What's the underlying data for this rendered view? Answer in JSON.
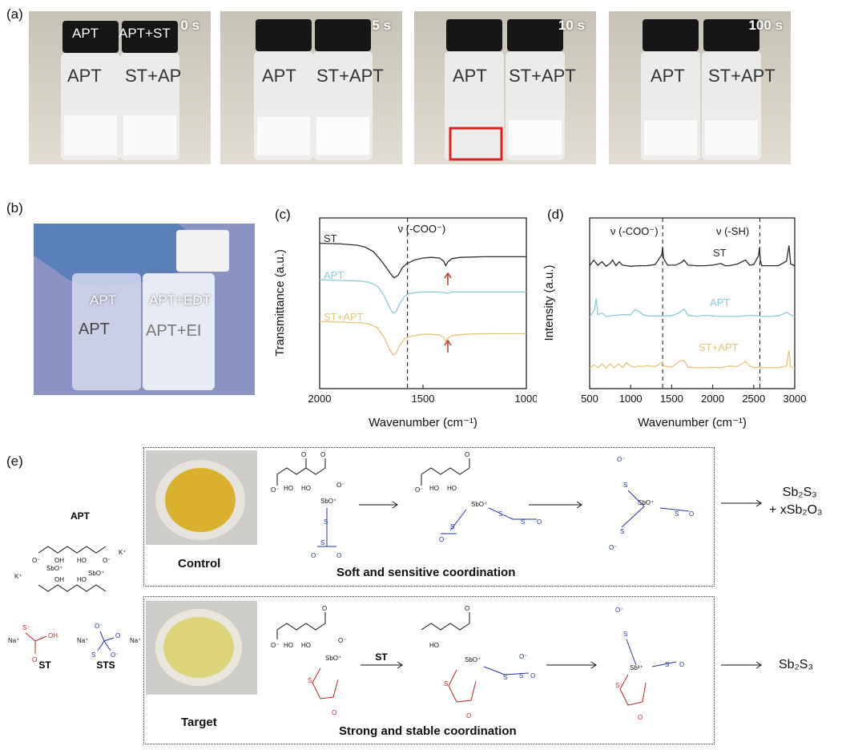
{
  "panels": {
    "a": "(a)",
    "b": "(b)",
    "c": "(c)",
    "d": "(d)",
    "e": "(e)"
  },
  "photos_a": [
    {
      "time": "0 s",
      "left_label": "APT",
      "right_label": "APT+ST"
    },
    {
      "time": "5 s"
    },
    {
      "time": "10 s"
    },
    {
      "time": "100 s"
    }
  ],
  "photo_b": {
    "left_label": "APT",
    "right_label": "APT+EDT"
  },
  "colors": {
    "ST": "#2b2b2b",
    "APT": "#8ec9d8",
    "ST+APT": "#e4c57a",
    "blue": "#2233aa",
    "red": "#cc2222",
    "arrow": "#c0392b"
  },
  "chart_data": [
    {
      "type": "line",
      "xlabel": "Wavenumber (cm⁻¹)",
      "ylabel": "Transmittance (a.u.)",
      "xlim": [
        2000,
        1000
      ],
      "x_ticks": [
        "2000",
        "1500",
        "1000"
      ],
      "annotation": "ν (-COO⁻)",
      "dashed_line_x": 1575,
      "series": [
        {
          "name": "ST",
          "x": [
            2000,
            1900,
            1820,
            1780,
            1740,
            1700,
            1660,
            1640,
            1620,
            1600,
            1580,
            1560,
            1540,
            1500,
            1460,
            1420,
            1400,
            1390,
            1380,
            1360,
            1320,
            1200,
            1100,
            1000
          ],
          "values": [
            0.98,
            0.97,
            0.95,
            0.92,
            0.85,
            0.7,
            0.52,
            0.44,
            0.48,
            0.6,
            0.66,
            0.69,
            0.72,
            0.75,
            0.76,
            0.75,
            0.7,
            0.63,
            0.69,
            0.74,
            0.76,
            0.77,
            0.77,
            0.77
          ]
        },
        {
          "name": "APT",
          "x": [
            2000,
            1900,
            1800,
            1760,
            1720,
            1690,
            1660,
            1645,
            1630,
            1610,
            1590,
            1570,
            1540,
            1500,
            1420,
            1380,
            1360,
            1300,
            1200,
            1100,
            1000
          ],
          "values": [
            0.96,
            0.95,
            0.94,
            0.92,
            0.86,
            0.72,
            0.52,
            0.44,
            0.47,
            0.6,
            0.7,
            0.74,
            0.76,
            0.77,
            0.77,
            0.75,
            0.77,
            0.77,
            0.77,
            0.77,
            0.77
          ]
        },
        {
          "name": "ST+APT",
          "x": [
            2000,
            1900,
            1800,
            1760,
            1720,
            1690,
            1660,
            1645,
            1630,
            1610,
            1590,
            1570,
            1540,
            1500,
            1460,
            1420,
            1400,
            1390,
            1380,
            1360,
            1300,
            1200,
            1100,
            1000
          ],
          "values": [
            0.96,
            0.95,
            0.94,
            0.92,
            0.86,
            0.72,
            0.52,
            0.44,
            0.47,
            0.6,
            0.69,
            0.72,
            0.74,
            0.76,
            0.76,
            0.75,
            0.71,
            0.65,
            0.7,
            0.74,
            0.76,
            0.77,
            0.77,
            0.77
          ]
        }
      ]
    },
    {
      "type": "line",
      "xlabel": "Wavenumber (cm⁻¹)",
      "ylabel": "Intensity (a.u.)",
      "xlim": [
        500,
        3000
      ],
      "x_ticks": [
        "500",
        "1000",
        "1500",
        "2000",
        "2500",
        "3000"
      ],
      "annotations": [
        "ν (-COO⁻)",
        "ν (-SH)"
      ],
      "dashed_lines_x": [
        1390,
        2575
      ],
      "series": [
        {
          "name": "ST",
          "x": [
            500,
            550,
            600,
            650,
            700,
            750,
            780,
            820,
            860,
            900,
            950,
            1000,
            1100,
            1200,
            1300,
            1380,
            1390,
            1400,
            1450,
            1550,
            1620,
            1650,
            1700,
            1800,
            1900,
            2000,
            2100,
            2150,
            2200,
            2300,
            2400,
            2450,
            2500,
            2560,
            2570,
            2580,
            2600,
            2700,
            2800,
            2900,
            2930,
            2950,
            3000
          ],
          "values": [
            0.2,
            1.2,
            0.3,
            0.9,
            0.1,
            0.6,
            1.2,
            0.2,
            0.9,
            0.3,
            0.2,
            0.1,
            0.2,
            0.2,
            0.4,
            2.2,
            3.5,
            1.5,
            0.3,
            0.3,
            0.8,
            1.2,
            0.3,
            0.2,
            0.2,
            0.3,
            0.6,
            0.2,
            0.2,
            0.5,
            1.2,
            0.3,
            0.4,
            2.0,
            3.4,
            1.2,
            0.2,
            0.2,
            0.2,
            1.0,
            3.8,
            0.5,
            0.2
          ]
        },
        {
          "name": "APT",
          "x": [
            500,
            560,
            580,
            600,
            650,
            700,
            800,
            900,
            1000,
            1050,
            1100,
            1150,
            1200,
            1300,
            1400,
            1500,
            1600,
            1650,
            1700,
            1800,
            1900,
            2000,
            2100,
            2200,
            2300,
            2400,
            2500,
            2600,
            2700,
            2800,
            2900,
            2950,
            3000
          ],
          "values": [
            0.2,
            1.5,
            3.5,
            0.6,
            0.9,
            0.3,
            0.5,
            0.6,
            0.6,
            1.5,
            1.2,
            0.6,
            0.4,
            0.4,
            0.4,
            0.4,
            1.0,
            1.6,
            0.5,
            0.3,
            0.5,
            0.4,
            0.3,
            0.3,
            0.3,
            0.4,
            0.5,
            0.3,
            0.3,
            0.4,
            1.0,
            0.6,
            0.2
          ]
        },
        {
          "name": "ST+APT",
          "x": [
            500,
            550,
            600,
            650,
            700,
            750,
            800,
            850,
            900,
            950,
            1000,
            1050,
            1100,
            1150,
            1200,
            1300,
            1380,
            1390,
            1400,
            1500,
            1600,
            1650,
            1700,
            1800,
            1900,
            2000,
            2100,
            2200,
            2300,
            2400,
            2450,
            2500,
            2570,
            2600,
            2700,
            2800,
            2900,
            2930,
            2950,
            3000
          ],
          "values": [
            0.2,
            0.8,
            0.3,
            1.0,
            0.2,
            1.0,
            0.3,
            1.0,
            0.3,
            1.2,
            0.6,
            0.4,
            0.6,
            0.5,
            0.7,
            0.5,
            1.2,
            1.4,
            0.6,
            0.4,
            1.5,
            1.6,
            0.4,
            0.3,
            0.3,
            0.4,
            0.3,
            0.6,
            0.5,
            1.4,
            0.6,
            0.3,
            0.4,
            0.3,
            0.3,
            0.3,
            0.6,
            3.4,
            0.4,
            0.2
          ]
        }
      ]
    }
  ],
  "scheme": {
    "apt_label": "APT",
    "st_label": "ST",
    "sts_label": "STS",
    "k_plus": "K⁺",
    "na_plus": "Na⁺",
    "control": {
      "label": "Control",
      "title": "Soft and sensitive coordination",
      "product_line1": "Sb₂S₃",
      "product_line2": "+ xSb₂O₃"
    },
    "target": {
      "label": "Target",
      "title": "Strong and stable coordination",
      "product_line1": "Sb₂S₃",
      "arrow_label": "ST"
    },
    "atoms": {
      "o": "O",
      "om": "O⁻",
      "ho": "HO",
      "oh": "OH",
      "s": "S",
      "sm": "S⁻",
      "sbo": "SbO⁺",
      "sb3": "Sb³⁺"
    }
  }
}
